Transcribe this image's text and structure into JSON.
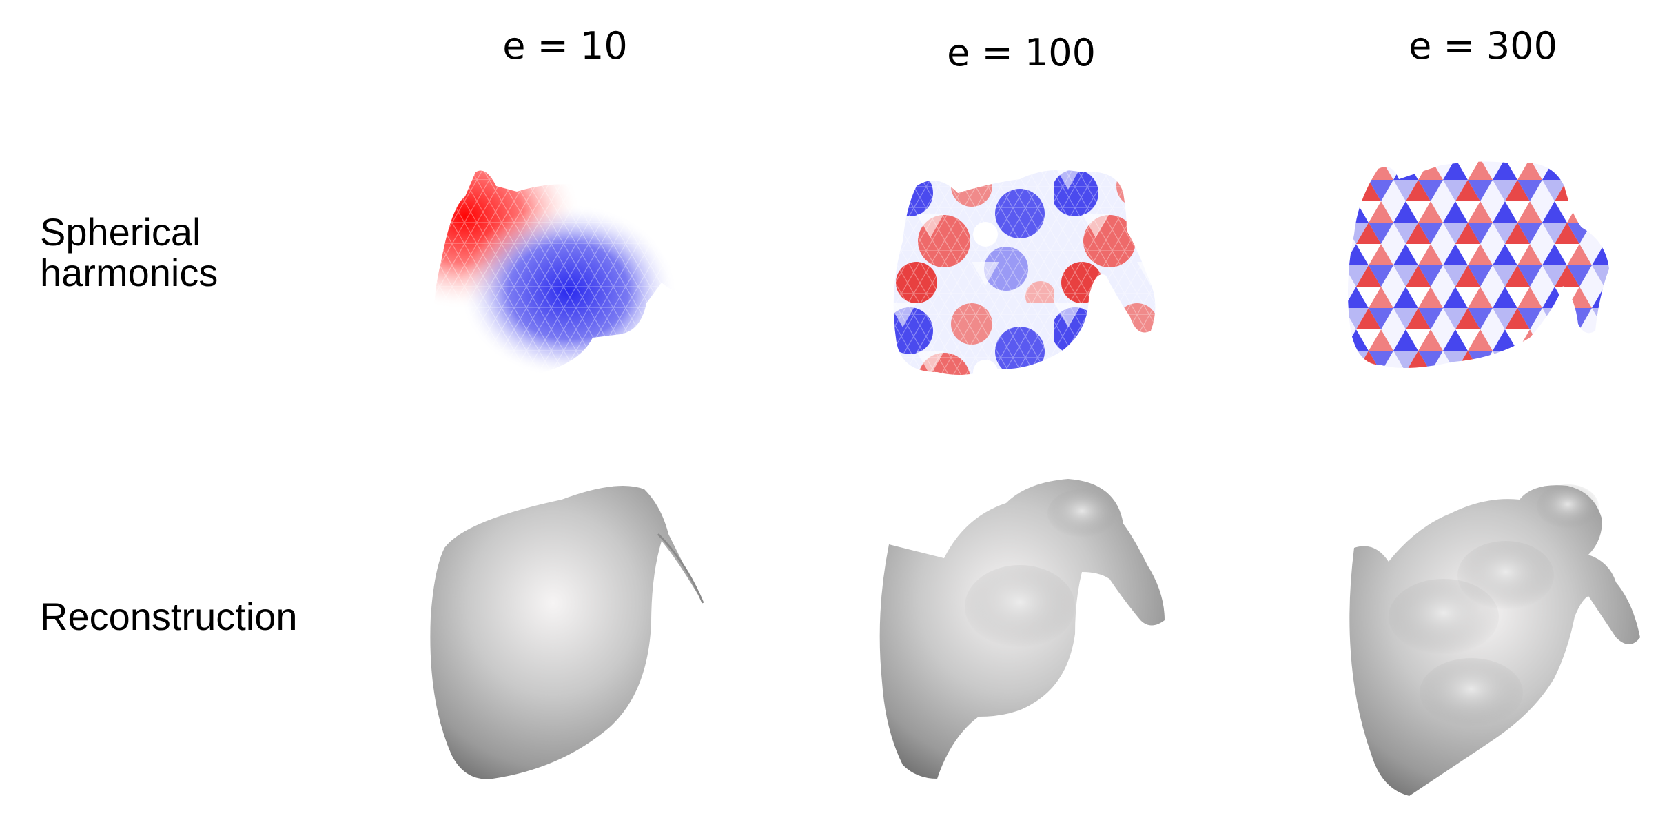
{
  "columns": [
    {
      "title": "e = 10"
    },
    {
      "title": "e = 100"
    },
    {
      "title": "e = 300"
    }
  ],
  "rows": {
    "harmonics": {
      "label_line1": "Spherical",
      "label_line2": "harmonics"
    },
    "reconstruction": {
      "label": "Reconstruction"
    }
  },
  "colors": {
    "positive": "#ff0000",
    "neutral": "#ffffff",
    "negative": "#2020ee",
    "surface_light": "#f2f2f2",
    "surface_dark": "#5e5e5e"
  }
}
